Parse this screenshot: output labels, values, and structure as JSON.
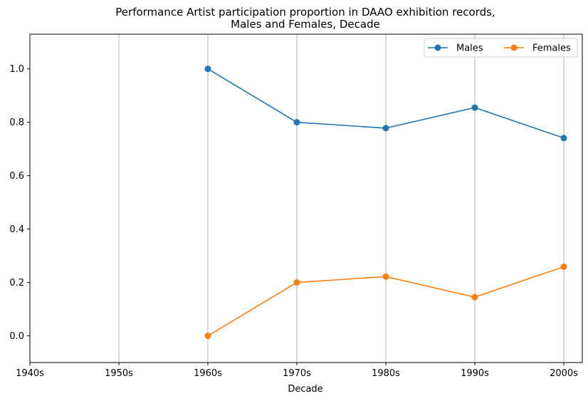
{
  "chart_data": {
    "type": "line",
    "title": "Performance Artist participation proportion in DAAO exhibition records,",
    "subtitle": "Males and Females, Decade",
    "xlabel": "Decade",
    "ylabel": "",
    "categories": [
      "1940s",
      "1950s",
      "1960s",
      "1970s",
      "1980s",
      "1990s",
      "2000s"
    ],
    "ylim": [
      -0.1,
      1.13
    ],
    "yticks": [
      0.0,
      0.2,
      0.4,
      0.6,
      0.8,
      1.0
    ],
    "ytick_labels": [
      "0.0",
      "0.2",
      "0.4",
      "0.6",
      "0.8",
      "1.0"
    ],
    "grid": "vertical",
    "legend_position": "top-right",
    "series": [
      {
        "name": "Males",
        "color": "#1f77b4",
        "values": [
          null,
          null,
          1.0,
          0.8,
          0.778,
          0.855,
          0.741
        ]
      },
      {
        "name": "Females",
        "color": "#ff7f0e",
        "values": [
          null,
          null,
          0.0,
          0.2,
          0.222,
          0.145,
          0.259
        ]
      }
    ]
  }
}
